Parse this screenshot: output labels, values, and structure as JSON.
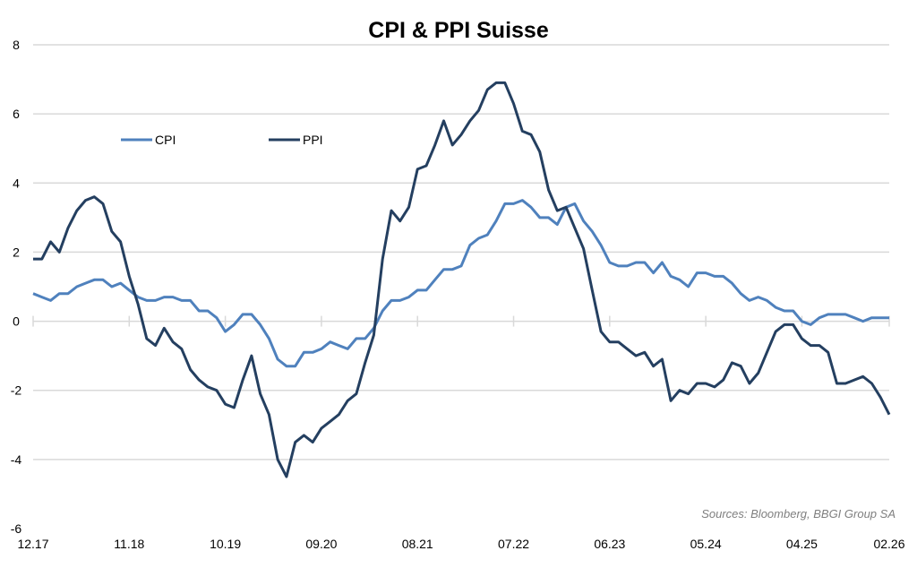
{
  "chart_data": {
    "type": "line",
    "title": "CPI & PPI Suisse",
    "xlabel": "",
    "ylabel": "",
    "ylim": [
      -6,
      8
    ],
    "yticks": [
      -6,
      -4,
      -2,
      0,
      2,
      4,
      6,
      8
    ],
    "grid": true,
    "legend_position": "top-left",
    "x_tick_labels": [
      {
        "index": 0,
        "label": "12.17"
      },
      {
        "index": 11,
        "label": "11.18"
      },
      {
        "index": 22,
        "label": "10.19"
      },
      {
        "index": 33,
        "label": "09.20"
      },
      {
        "index": 44,
        "label": "08.21"
      },
      {
        "index": 55,
        "label": "07.22"
      },
      {
        "index": 66,
        "label": "06.23"
      },
      {
        "index": 77,
        "label": "05.24"
      },
      {
        "index": 88,
        "label": "04.25"
      },
      {
        "index": 98,
        "label": "02.26"
      }
    ],
    "series": [
      {
        "name": "CPI",
        "color": "#4f81bd",
        "values": [
          0.8,
          0.7,
          0.6,
          0.8,
          0.8,
          1.0,
          1.1,
          1.2,
          1.2,
          1.0,
          1.1,
          0.9,
          0.7,
          0.6,
          0.6,
          0.7,
          0.7,
          0.6,
          0.6,
          0.3,
          0.3,
          0.1,
          -0.3,
          -0.1,
          0.2,
          0.2,
          -0.1,
          -0.5,
          -1.1,
          -1.3,
          -1.3,
          -0.9,
          -0.9,
          -0.8,
          -0.6,
          -0.7,
          -0.8,
          -0.5,
          -0.5,
          -0.2,
          0.3,
          0.6,
          0.6,
          0.7,
          0.9,
          0.9,
          1.2,
          1.5,
          1.5,
          1.6,
          2.2,
          2.4,
          2.5,
          2.9,
          3.4,
          3.4,
          3.5,
          3.3,
          3.0,
          3.0,
          2.8,
          3.3,
          3.4,
          2.9,
          2.6,
          2.2,
          1.7,
          1.6,
          1.6,
          1.7,
          1.7,
          1.4,
          1.7,
          1.3,
          1.2,
          1.0,
          1.4,
          1.4,
          1.3,
          1.3,
          1.1,
          0.8,
          0.6,
          0.7,
          0.6,
          0.4,
          0.3,
          0.3,
          0.0,
          -0.1,
          0.1,
          0.2,
          0.2,
          0.2,
          0.1,
          0.0,
          0.1,
          0.1,
          0.1
        ]
      },
      {
        "name": "PPI",
        "color": "#243f60",
        "values": [
          1.8,
          1.8,
          2.3,
          2.0,
          2.7,
          3.2,
          3.5,
          3.6,
          3.4,
          2.6,
          2.3,
          1.3,
          0.5,
          -0.5,
          -0.7,
          -0.2,
          -0.6,
          -0.8,
          -1.4,
          -1.7,
          -1.9,
          -2.0,
          -2.4,
          -2.5,
          -1.7,
          -1.0,
          -2.1,
          -2.7,
          -4.0,
          -4.5,
          -3.5,
          -3.3,
          -3.5,
          -3.1,
          -2.9,
          -2.7,
          -2.3,
          -2.1,
          -1.2,
          -0.4,
          1.8,
          3.2,
          2.9,
          3.3,
          4.4,
          4.5,
          5.1,
          5.8,
          5.1,
          5.4,
          5.8,
          6.1,
          6.7,
          6.9,
          6.9,
          6.3,
          5.5,
          5.4,
          4.9,
          3.8,
          3.2,
          3.3,
          2.7,
          2.1,
          0.9,
          -0.3,
          -0.6,
          -0.6,
          -0.8,
          -1.0,
          -0.9,
          -1.3,
          -1.1,
          -2.3,
          -2.0,
          -2.1,
          -1.8,
          -1.8,
          -1.9,
          -1.7,
          -1.2,
          -1.3,
          -1.8,
          -1.5,
          -0.9,
          -0.3,
          -0.1,
          -0.1,
          -0.5,
          -0.7,
          -0.7,
          -0.9,
          -1.8,
          -1.8,
          -1.7,
          -1.6,
          -1.8,
          -2.2,
          -2.7
        ]
      }
    ],
    "annotation": "Sources: Bloomberg, BBGI Group SA"
  }
}
